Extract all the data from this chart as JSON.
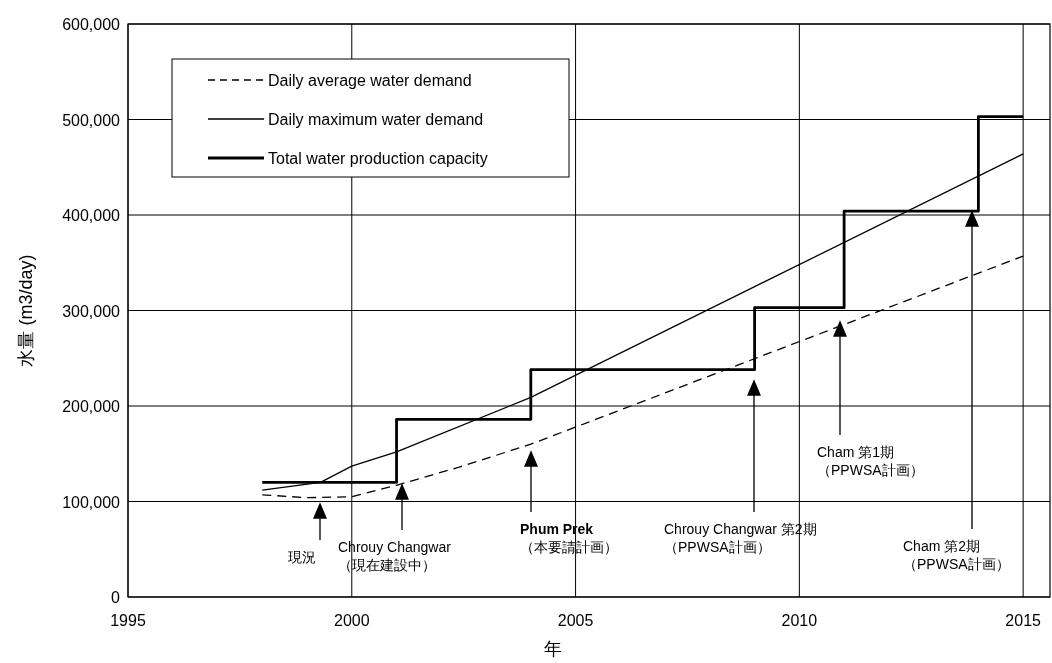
{
  "chart_data": {
    "type": "line",
    "xlabel": "年",
    "ylabel": "水量 (m3/day)",
    "xlim": [
      1995,
      2015.6
    ],
    "xticks": [
      1995,
      2000,
      2005,
      2010,
      2015
    ],
    "ylim": [
      0,
      600000
    ],
    "yticks": [
      {
        "value": 0,
        "label": "0"
      },
      {
        "value": 100000,
        "label": "100,000"
      },
      {
        "value": 200000,
        "label": "200,000"
      },
      {
        "value": 300000,
        "label": "300,000"
      },
      {
        "value": 400000,
        "label": "400,000"
      },
      {
        "value": 500000,
        "label": "500,000"
      },
      {
        "value": 600000,
        "label": "600,000"
      }
    ],
    "grid": true,
    "legend": "top left",
    "marker": "none",
    "series": [
      {
        "name": "Daily average water demand",
        "color": "#000000",
        "type": "line",
        "line_style": "dashed",
        "x": [
          1998,
          1999,
          2000,
          2001,
          2002.4,
          2004,
          2015
        ],
        "values": [
          107000,
          104000,
          105000,
          117000,
          136000,
          160000,
          357000
        ]
      },
      {
        "name": "Daily maximum water demand",
        "color": "#000000",
        "type": "line",
        "line_style": "solid",
        "x": [
          1998,
          1999.3,
          2000,
          2001,
          2004,
          2015
        ],
        "values": [
          112000,
          120000,
          137000,
          152000,
          209000,
          464000
        ]
      },
      {
        "name": "Total water production capacity",
        "color": "#000000",
        "type": "step",
        "line_style": "solid",
        "x": [
          1998,
          2001,
          2004,
          2009,
          2011,
          2014,
          2015
        ],
        "values": [
          120000,
          186000,
          238000,
          303000,
          404000,
          503000,
          503000
        ]
      }
    ],
    "annotations": [
      "現況",
      "Chrouy Changwar\n（現在建設中）",
      "Phum Prek\n（本要請計画）",
      "Chrouy Changwar 第2期（PPWSA計画）",
      "Cham 第1期（PPWSA計画）",
      "Cham 第2期（PPWSA計画）"
    ]
  }
}
